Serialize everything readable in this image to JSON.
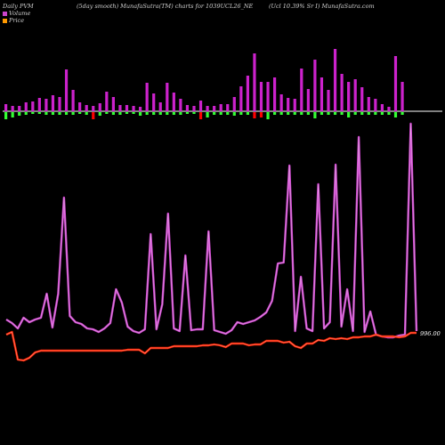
{
  "header": {
    "left": "Daily PVM",
    "mid": "(5day smooth) MunafaSutra(TM) charts for 1039UCL26_NE",
    "right": "(Ucl 10.39% Sr I) MunafaSutra.com"
  },
  "legend": {
    "volume_label": "Volume",
    "price_label": "Price",
    "volume_color": "#cc44cc",
    "price_color": "#ff9900"
  },
  "colors": {
    "volume_up": "#cc22cc",
    "volume_down_red": "#ff0000",
    "volume_down_green": "#33ff33",
    "price_line": "#ff2200",
    "smooth_line": "#cc44cc"
  },
  "chart_data": {
    "type": "line",
    "last_price_label": "996.00",
    "volume_bars": [
      {
        "up": 8,
        "down": 8,
        "down_color": "green"
      },
      {
        "up": 6,
        "down": 6,
        "down_color": "green"
      },
      {
        "up": 6,
        "down": 4,
        "down_color": "green"
      },
      {
        "up": 10,
        "down": 3,
        "down_color": "green"
      },
      {
        "up": 11,
        "down": 2,
        "down_color": "green"
      },
      {
        "up": 15,
        "down": 2,
        "down_color": "green"
      },
      {
        "up": 14,
        "down": 3,
        "down_color": "green"
      },
      {
        "up": 18,
        "down": 3,
        "down_color": "green"
      },
      {
        "up": 16,
        "down": 3,
        "down_color": "green"
      },
      {
        "up": 47,
        "down": 3,
        "down_color": "green"
      },
      {
        "up": 24,
        "down": 3,
        "down_color": "green"
      },
      {
        "up": 10,
        "down": 2,
        "down_color": "green"
      },
      {
        "up": 7,
        "down": 3,
        "down_color": "green"
      },
      {
        "up": 6,
        "down": 8,
        "down_color": "red"
      },
      {
        "up": 9,
        "down": 4,
        "down_color": "green"
      },
      {
        "up": 22,
        "down": 2,
        "down_color": "green"
      },
      {
        "up": 16,
        "down": 3,
        "down_color": "green"
      },
      {
        "up": 7,
        "down": 3,
        "down_color": "green"
      },
      {
        "up": 7,
        "down": 2,
        "down_color": "green"
      },
      {
        "up": 6,
        "down": 2,
        "down_color": "green"
      },
      {
        "up": 5,
        "down": 4,
        "down_color": "green"
      },
      {
        "up": 32,
        "down": 3,
        "down_color": "green"
      },
      {
        "up": 20,
        "down": 3,
        "down_color": "green"
      },
      {
        "up": 10,
        "down": 3,
        "down_color": "green"
      },
      {
        "up": 32,
        "down": 3,
        "down_color": "green"
      },
      {
        "up": 21,
        "down": 3,
        "down_color": "green"
      },
      {
        "up": 14,
        "down": 3,
        "down_color": "green"
      },
      {
        "up": 7,
        "down": 2,
        "down_color": "green"
      },
      {
        "up": 6,
        "down": 2,
        "down_color": "green"
      },
      {
        "up": 12,
        "down": 8,
        "down_color": "red"
      },
      {
        "up": 6,
        "down": 6,
        "down_color": "green"
      },
      {
        "up": 6,
        "down": 3,
        "down_color": "green"
      },
      {
        "up": 8,
        "down": 3,
        "down_color": "green"
      },
      {
        "up": 8,
        "down": 3,
        "down_color": "green"
      },
      {
        "up": 16,
        "down": 4,
        "down_color": "green"
      },
      {
        "up": 28,
        "down": 3,
        "down_color": "green"
      },
      {
        "up": 40,
        "down": 3,
        "down_color": "green"
      },
      {
        "up": 65,
        "down": 7,
        "down_color": "red"
      },
      {
        "up": 33,
        "down": 6,
        "down_color": "red"
      },
      {
        "up": 33,
        "down": 8,
        "down_color": "green"
      },
      {
        "up": 38,
        "down": 3,
        "down_color": "green"
      },
      {
        "up": 19,
        "down": 3,
        "down_color": "green"
      },
      {
        "up": 15,
        "down": 3,
        "down_color": "green"
      },
      {
        "up": 14,
        "down": 3,
        "down_color": "green"
      },
      {
        "up": 48,
        "down": 3,
        "down_color": "green"
      },
      {
        "up": 25,
        "down": 3,
        "down_color": "green"
      },
      {
        "up": 58,
        "down": 7,
        "down_color": "green"
      },
      {
        "up": 38,
        "down": 3,
        "down_color": "green"
      },
      {
        "up": 24,
        "down": 3,
        "down_color": "green"
      },
      {
        "up": 70,
        "down": 3,
        "down_color": "green"
      },
      {
        "up": 42,
        "down": 3,
        "down_color": "green"
      },
      {
        "up": 33,
        "down": 6,
        "down_color": "green"
      },
      {
        "up": 36,
        "down": 3,
        "down_color": "green"
      },
      {
        "up": 27,
        "down": 3,
        "down_color": "green"
      },
      {
        "up": 16,
        "down": 3,
        "down_color": "green"
      },
      {
        "up": 14,
        "down": 3,
        "down_color": "green"
      },
      {
        "up": 8,
        "down": 3,
        "down_color": "green"
      },
      {
        "up": 5,
        "down": 3,
        "down_color": "green"
      },
      {
        "up": 62,
        "down": 6,
        "down_color": "green"
      },
      {
        "up": 33,
        "down": 3,
        "down_color": "green"
      }
    ],
    "volume_line": [
      359,
      363,
      369,
      357,
      362,
      359,
      357,
      330,
      368,
      330,
      222,
      355,
      362,
      364,
      369,
      370,
      373,
      369,
      363,
      325,
      340,
      367,
      372,
      374,
      370,
      263,
      370,
      342,
      240,
      369,
      372,
      287,
      371,
      370,
      370,
      260,
      371,
      373,
      375,
      371,
      362,
      364,
      362,
      360,
      356,
      351,
      338,
      296,
      295,
      186,
      372,
      311,
      369,
      372,
      207,
      369,
      362,
      185,
      367,
      325,
      372,
      154,
      373,
      350,
      376,
      378,
      379,
      379,
      377,
      376,
      139,
      372
    ],
    "price_line": [
      376,
      373,
      404,
      405,
      402,
      396,
      394,
      394,
      394,
      394,
      394,
      394,
      394,
      394,
      394,
      394,
      394,
      394,
      394,
      394,
      394,
      393,
      393,
      393,
      397,
      391,
      391,
      391,
      391,
      389,
      389,
      389,
      389,
      389,
      388,
      388,
      387,
      388,
      390,
      386,
      386,
      386,
      388,
      387,
      387,
      383,
      383,
      383,
      385,
      384,
      389,
      391,
      386,
      386,
      382,
      383,
      380,
      381,
      380,
      381,
      379,
      379,
      378,
      378,
      376,
      378,
      378,
      378,
      379,
      378,
      374,
      374
    ]
  }
}
